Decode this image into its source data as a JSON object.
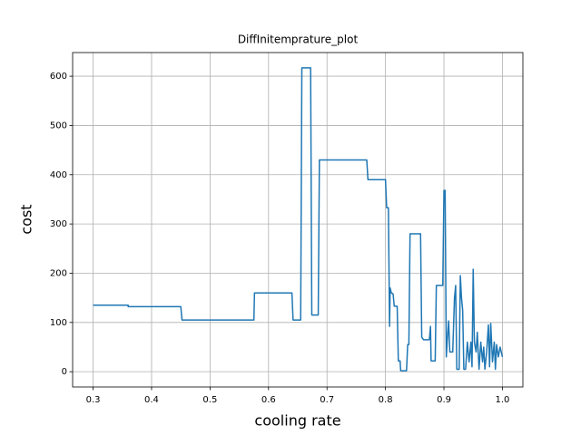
{
  "chart_data": {
    "type": "line",
    "title": "DiffInitemprature_plot",
    "x_label": "cooling rate",
    "y_label": "cost",
    "color": "#1f77b4",
    "grid": true,
    "x": [
      0.3,
      0.36,
      0.36,
      0.45,
      0.452,
      0.575,
      0.576,
      0.64,
      0.642,
      0.655,
      0.657,
      0.672,
      0.674,
      0.685,
      0.687,
      0.768,
      0.77,
      0.8,
      0.802,
      0.805,
      0.807,
      0.808,
      0.81,
      0.813,
      0.815,
      0.82,
      0.822,
      0.825,
      0.826,
      0.836,
      0.838,
      0.84,
      0.842,
      0.86,
      0.862,
      0.865,
      0.875,
      0.877,
      0.878,
      0.885,
      0.887,
      0.898,
      0.9,
      0.902,
      0.904,
      0.906,
      0.908,
      0.91,
      0.915,
      0.918,
      0.92,
      0.922,
      0.926,
      0.928,
      0.93,
      0.932,
      0.934,
      0.937,
      0.94,
      0.943,
      0.946,
      0.948,
      0.95,
      0.952,
      0.955,
      0.957,
      0.96,
      0.963,
      0.966,
      0.968,
      0.97,
      0.973,
      0.976,
      0.978,
      0.98,
      0.983,
      0.986,
      0.988,
      0.99,
      0.993,
      0.996,
      1.0
    ],
    "values": [
      135,
      135,
      132,
      132,
      105,
      105,
      160,
      160,
      105,
      105,
      617,
      617,
      115,
      115,
      430,
      430,
      390,
      390,
      333,
      333,
      92,
      170,
      160,
      158,
      133,
      133,
      22,
      22,
      2,
      2,
      55,
      55,
      280,
      280,
      70,
      65,
      65,
      92,
      22,
      22,
      175,
      175,
      368,
      368,
      30,
      70,
      103,
      40,
      40,
      150,
      175,
      5,
      5,
      195,
      150,
      125,
      5,
      5,
      60,
      20,
      60,
      10,
      208,
      60,
      40,
      80,
      5,
      60,
      20,
      50,
      5,
      40,
      95,
      10,
      98,
      20,
      60,
      5,
      55,
      30,
      50,
      30
    ],
    "xlim": [
      0.265,
      1.035
    ],
    "ylim": [
      -31,
      648
    ],
    "xticks": [
      0.3,
      0.4,
      0.5,
      0.6,
      0.7,
      0.8,
      0.9,
      {
        "value": 1,
        "label": "1.0"
      }
    ],
    "yticks": [
      0,
      100,
      200,
      300,
      400,
      500,
      600
    ]
  }
}
